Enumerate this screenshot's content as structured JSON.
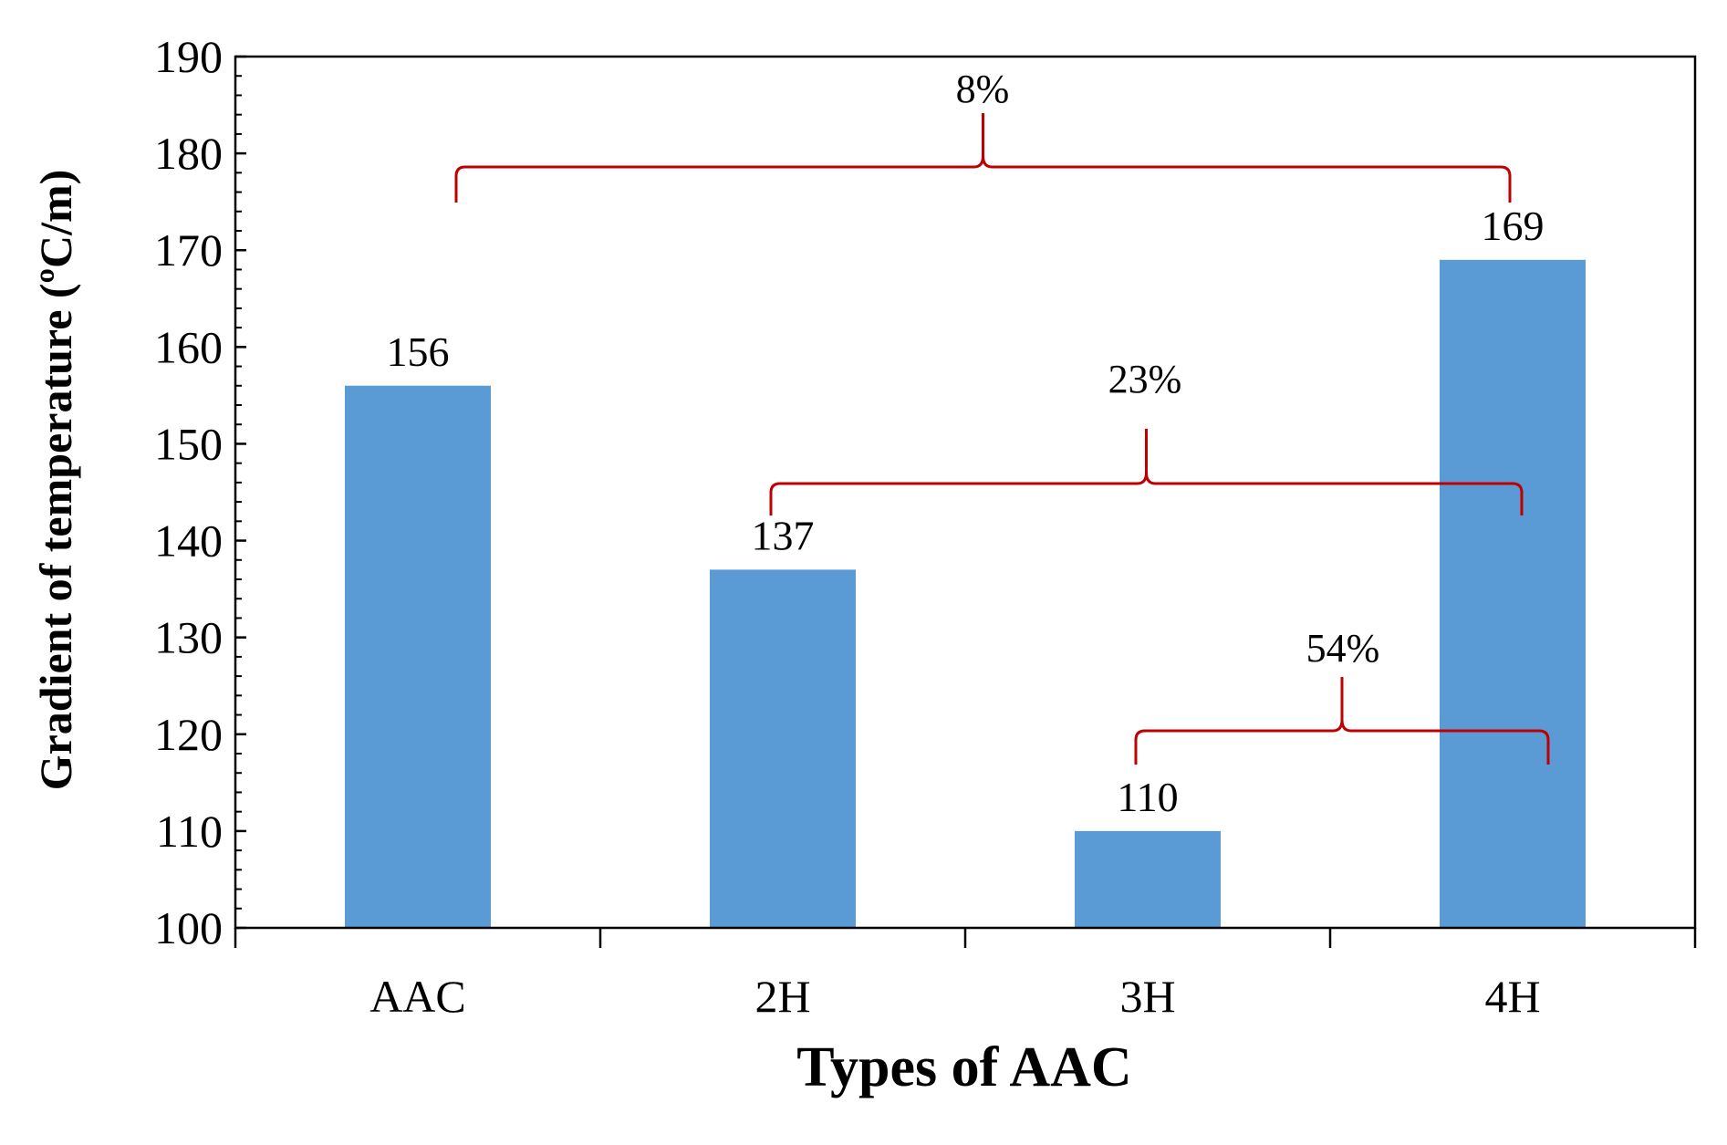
{
  "chart_data": {
    "type": "bar",
    "title": "",
    "xlabel": "Types of AAC",
    "ylabel": "Gradient of temperature (ºC/m)",
    "categories": [
      "AAC",
      "2H",
      "3H",
      "4H"
    ],
    "values": [
      156,
      137,
      110,
      169
    ],
    "data_labels": [
      "156",
      "137",
      "110",
      "169"
    ],
    "ylim": [
      100,
      190
    ],
    "yticks": [
      100,
      110,
      120,
      130,
      140,
      150,
      160,
      170,
      180,
      190
    ],
    "bar_color": "#5b9bd5",
    "annotation_color": "#c00000",
    "grid": false,
    "legend": "none",
    "annotations": [
      {
        "label": "8%",
        "from": "AAC",
        "to": "4H"
      },
      {
        "label": "23%",
        "from": "2H",
        "to": "4H"
      },
      {
        "label": "54%",
        "from": "3H",
        "to": "4H"
      }
    ]
  }
}
